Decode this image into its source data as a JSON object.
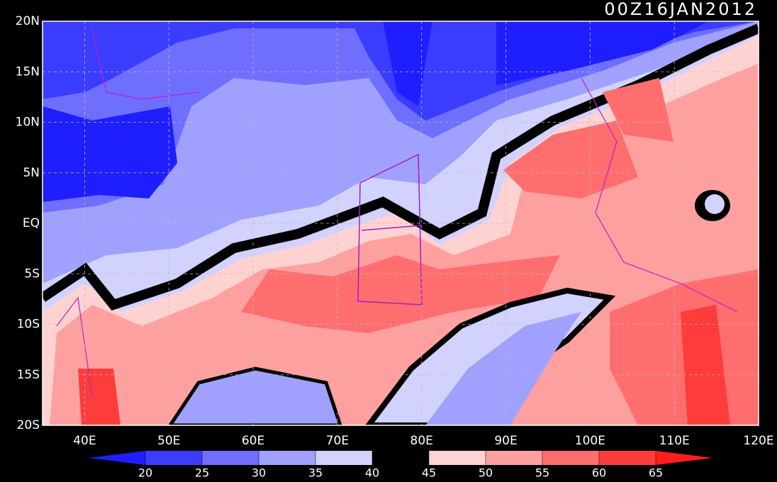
{
  "timestamp": "00Z16JAN2012",
  "lon_range": [
    35,
    120
  ],
  "lat_range": [
    -20,
    20
  ],
  "lat_ticks": [
    {
      "value": 20,
      "label": "20N"
    },
    {
      "value": 15,
      "label": "15N"
    },
    {
      "value": 10,
      "label": "10N"
    },
    {
      "value": 5,
      "label": "5N"
    },
    {
      "value": 0,
      "label": "EQ"
    },
    {
      "value": -5,
      "label": "5S"
    },
    {
      "value": -10,
      "label": "10S"
    },
    {
      "value": -15,
      "label": "15S"
    },
    {
      "value": -20,
      "label": "20S"
    }
  ],
  "lon_ticks": [
    {
      "value": 40,
      "label": "40E"
    },
    {
      "value": 50,
      "label": "50E"
    },
    {
      "value": 60,
      "label": "60E"
    },
    {
      "value": 70,
      "label": "70E"
    },
    {
      "value": 80,
      "label": "80E"
    },
    {
      "value": 90,
      "label": "90E"
    },
    {
      "value": 100,
      "label": "100E"
    },
    {
      "value": 110,
      "label": "110E"
    },
    {
      "value": 120,
      "label": "120E"
    }
  ],
  "colorbar": {
    "levels": [
      20,
      25,
      30,
      35,
      40,
      45,
      50,
      55,
      60,
      65
    ],
    "colors": [
      "#1e1eff",
      "#3c3cff",
      "#6e6eff",
      "#a0a0ff",
      "#d2d2ff",
      "#000000",
      "#ffd2d2",
      "#ffa0a0",
      "#ff6e6e",
      "#ff3c3c",
      "#ff1e1e"
    ]
  }
}
